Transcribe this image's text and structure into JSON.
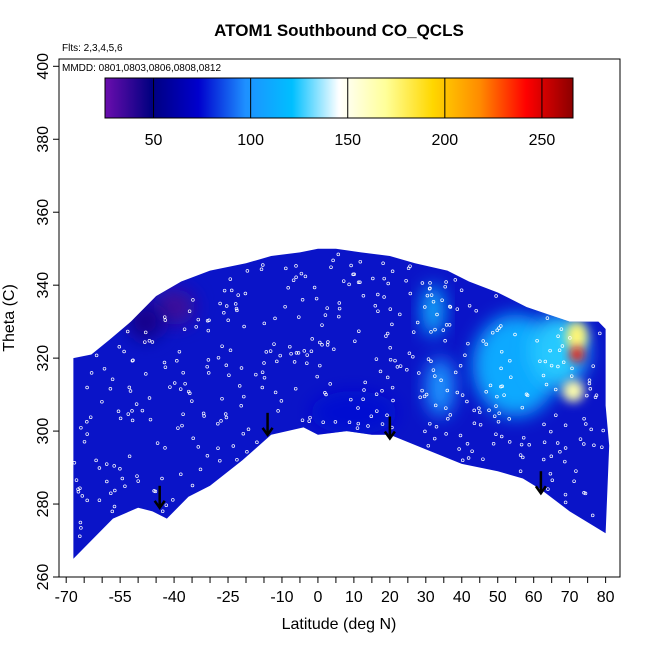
{
  "chart_data": {
    "type": "heatmap",
    "title": "ATOM1 Southbound CO_QCLS",
    "flights_label": "Flts: 2,3,4,5,6",
    "dates_label": "MMDD: 0801,0803,0806,0808,0812",
    "xlabel": "Latitude (deg N)",
    "ylabel": "Theta (C)",
    "xlim": [
      -72,
      84
    ],
    "ylim": [
      260,
      402
    ],
    "x_ticks": [
      -70,
      -55,
      -40,
      -25,
      -10,
      0,
      10,
      20,
      30,
      40,
      50,
      60,
      70,
      80
    ],
    "x_minor_ticks": [
      -65,
      -60,
      -50,
      -45,
      -35,
      -30,
      -20,
      -15,
      -5,
      5,
      15,
      25,
      35,
      45,
      55,
      65,
      75
    ],
    "y_ticks": [
      260,
      280,
      300,
      320,
      340,
      360,
      380,
      400
    ],
    "colorbar": {
      "range": [
        25,
        266
      ],
      "ticks": [
        50,
        100,
        150,
        200,
        250
      ],
      "colors": [
        "#6a0dad",
        "#000080",
        "#0000cd",
        "#1e90ff",
        "#00bfff",
        "#ffffff",
        "#ffff99",
        "#ffd700",
        "#ff8c00",
        "#ff0000",
        "#8b0000"
      ]
    },
    "domain_lower_boundary": [
      {
        "lat": -68,
        "theta": 265
      },
      {
        "lat": -63,
        "theta": 270
      },
      {
        "lat": -57,
        "theta": 276
      },
      {
        "lat": -50,
        "theta": 279
      },
      {
        "lat": -46,
        "theta": 278
      },
      {
        "lat": -42,
        "theta": 276
      },
      {
        "lat": -36,
        "theta": 282
      },
      {
        "lat": -30,
        "theta": 285
      },
      {
        "lat": -21,
        "theta": 292
      },
      {
        "lat": -13,
        "theta": 299
      },
      {
        "lat": -4,
        "theta": 301
      },
      {
        "lat": 0,
        "theta": 299
      },
      {
        "lat": 8,
        "theta": 300
      },
      {
        "lat": 15,
        "theta": 299
      },
      {
        "lat": 20,
        "theta": 299
      },
      {
        "lat": 30,
        "theta": 295
      },
      {
        "lat": 40,
        "theta": 291
      },
      {
        "lat": 50,
        "theta": 289
      },
      {
        "lat": 57,
        "theta": 287
      },
      {
        "lat": 62,
        "theta": 284
      },
      {
        "lat": 70,
        "theta": 278
      },
      {
        "lat": 80,
        "theta": 272
      }
    ],
    "domain_upper_boundary": [
      {
        "lat": -68,
        "theta": 320
      },
      {
        "lat": -63,
        "theta": 321
      },
      {
        "lat": -58,
        "theta": 325
      },
      {
        "lat": -52,
        "theta": 330
      },
      {
        "lat": -45,
        "theta": 337
      },
      {
        "lat": -38,
        "theta": 341
      },
      {
        "lat": -30,
        "theta": 344
      },
      {
        "lat": -20,
        "theta": 346
      },
      {
        "lat": -13,
        "theta": 348
      },
      {
        "lat": -5,
        "theta": 349
      },
      {
        "lat": 0,
        "theta": 350
      },
      {
        "lat": 5,
        "theta": 350
      },
      {
        "lat": 12,
        "theta": 349
      },
      {
        "lat": 20,
        "theta": 348
      },
      {
        "lat": 27,
        "theta": 346
      },
      {
        "lat": 36,
        "theta": 344
      },
      {
        "lat": 42,
        "theta": 341
      },
      {
        "lat": 50,
        "theta": 338
      },
      {
        "lat": 58,
        "theta": 334
      },
      {
        "lat": 64,
        "theta": 332
      },
      {
        "lat": 70,
        "theta": 330
      },
      {
        "lat": 78,
        "theta": 330
      },
      {
        "lat": 80,
        "theta": 328
      }
    ],
    "right_edge": [
      {
        "lat": 80,
        "theta": 328
      },
      {
        "lat": 80,
        "theta": 307
      },
      {
        "lat": 81,
        "theta": 296
      },
      {
        "lat": 80,
        "theta": 272
      }
    ],
    "anomalies": [
      {
        "lat": -40,
        "theta": 334,
        "co": 35,
        "radius_lat": 6,
        "radius_theta": 5
      },
      {
        "lat": -48,
        "theta": 330,
        "co": 45,
        "radius_lat": 5,
        "radius_theta": 5
      },
      {
        "lat": 32,
        "theta": 333,
        "co": 115,
        "radius_lat": 3,
        "radius_theta": 7
      },
      {
        "lat": 34,
        "theta": 312,
        "co": 100,
        "radius_lat": 4,
        "radius_theta": 8
      },
      {
        "lat": 55,
        "theta": 318,
        "co": 110,
        "radius_lat": 12,
        "radius_theta": 14
      },
      {
        "lat": 67,
        "theta": 322,
        "co": 125,
        "radius_lat": 8,
        "radius_theta": 10
      },
      {
        "lat": 72,
        "theta": 326,
        "co": 175,
        "radius_lat": 3,
        "radius_theta": 4
      },
      {
        "lat": 72,
        "theta": 321,
        "co": 240,
        "radius_lat": 2,
        "radius_theta": 2
      },
      {
        "lat": 71,
        "theta": 311,
        "co": 165,
        "radius_lat": 3,
        "radius_theta": 3
      },
      {
        "lat": 10,
        "theta": 305,
        "co": 75,
        "radius_lat": 12,
        "radius_theta": 6
      }
    ],
    "arrows": [
      {
        "lat": -44,
        "theta": 285
      },
      {
        "lat": -14,
        "theta": 305
      },
      {
        "lat": 20,
        "theta": 304
      },
      {
        "lat": 62,
        "theta": 289
      }
    ]
  }
}
